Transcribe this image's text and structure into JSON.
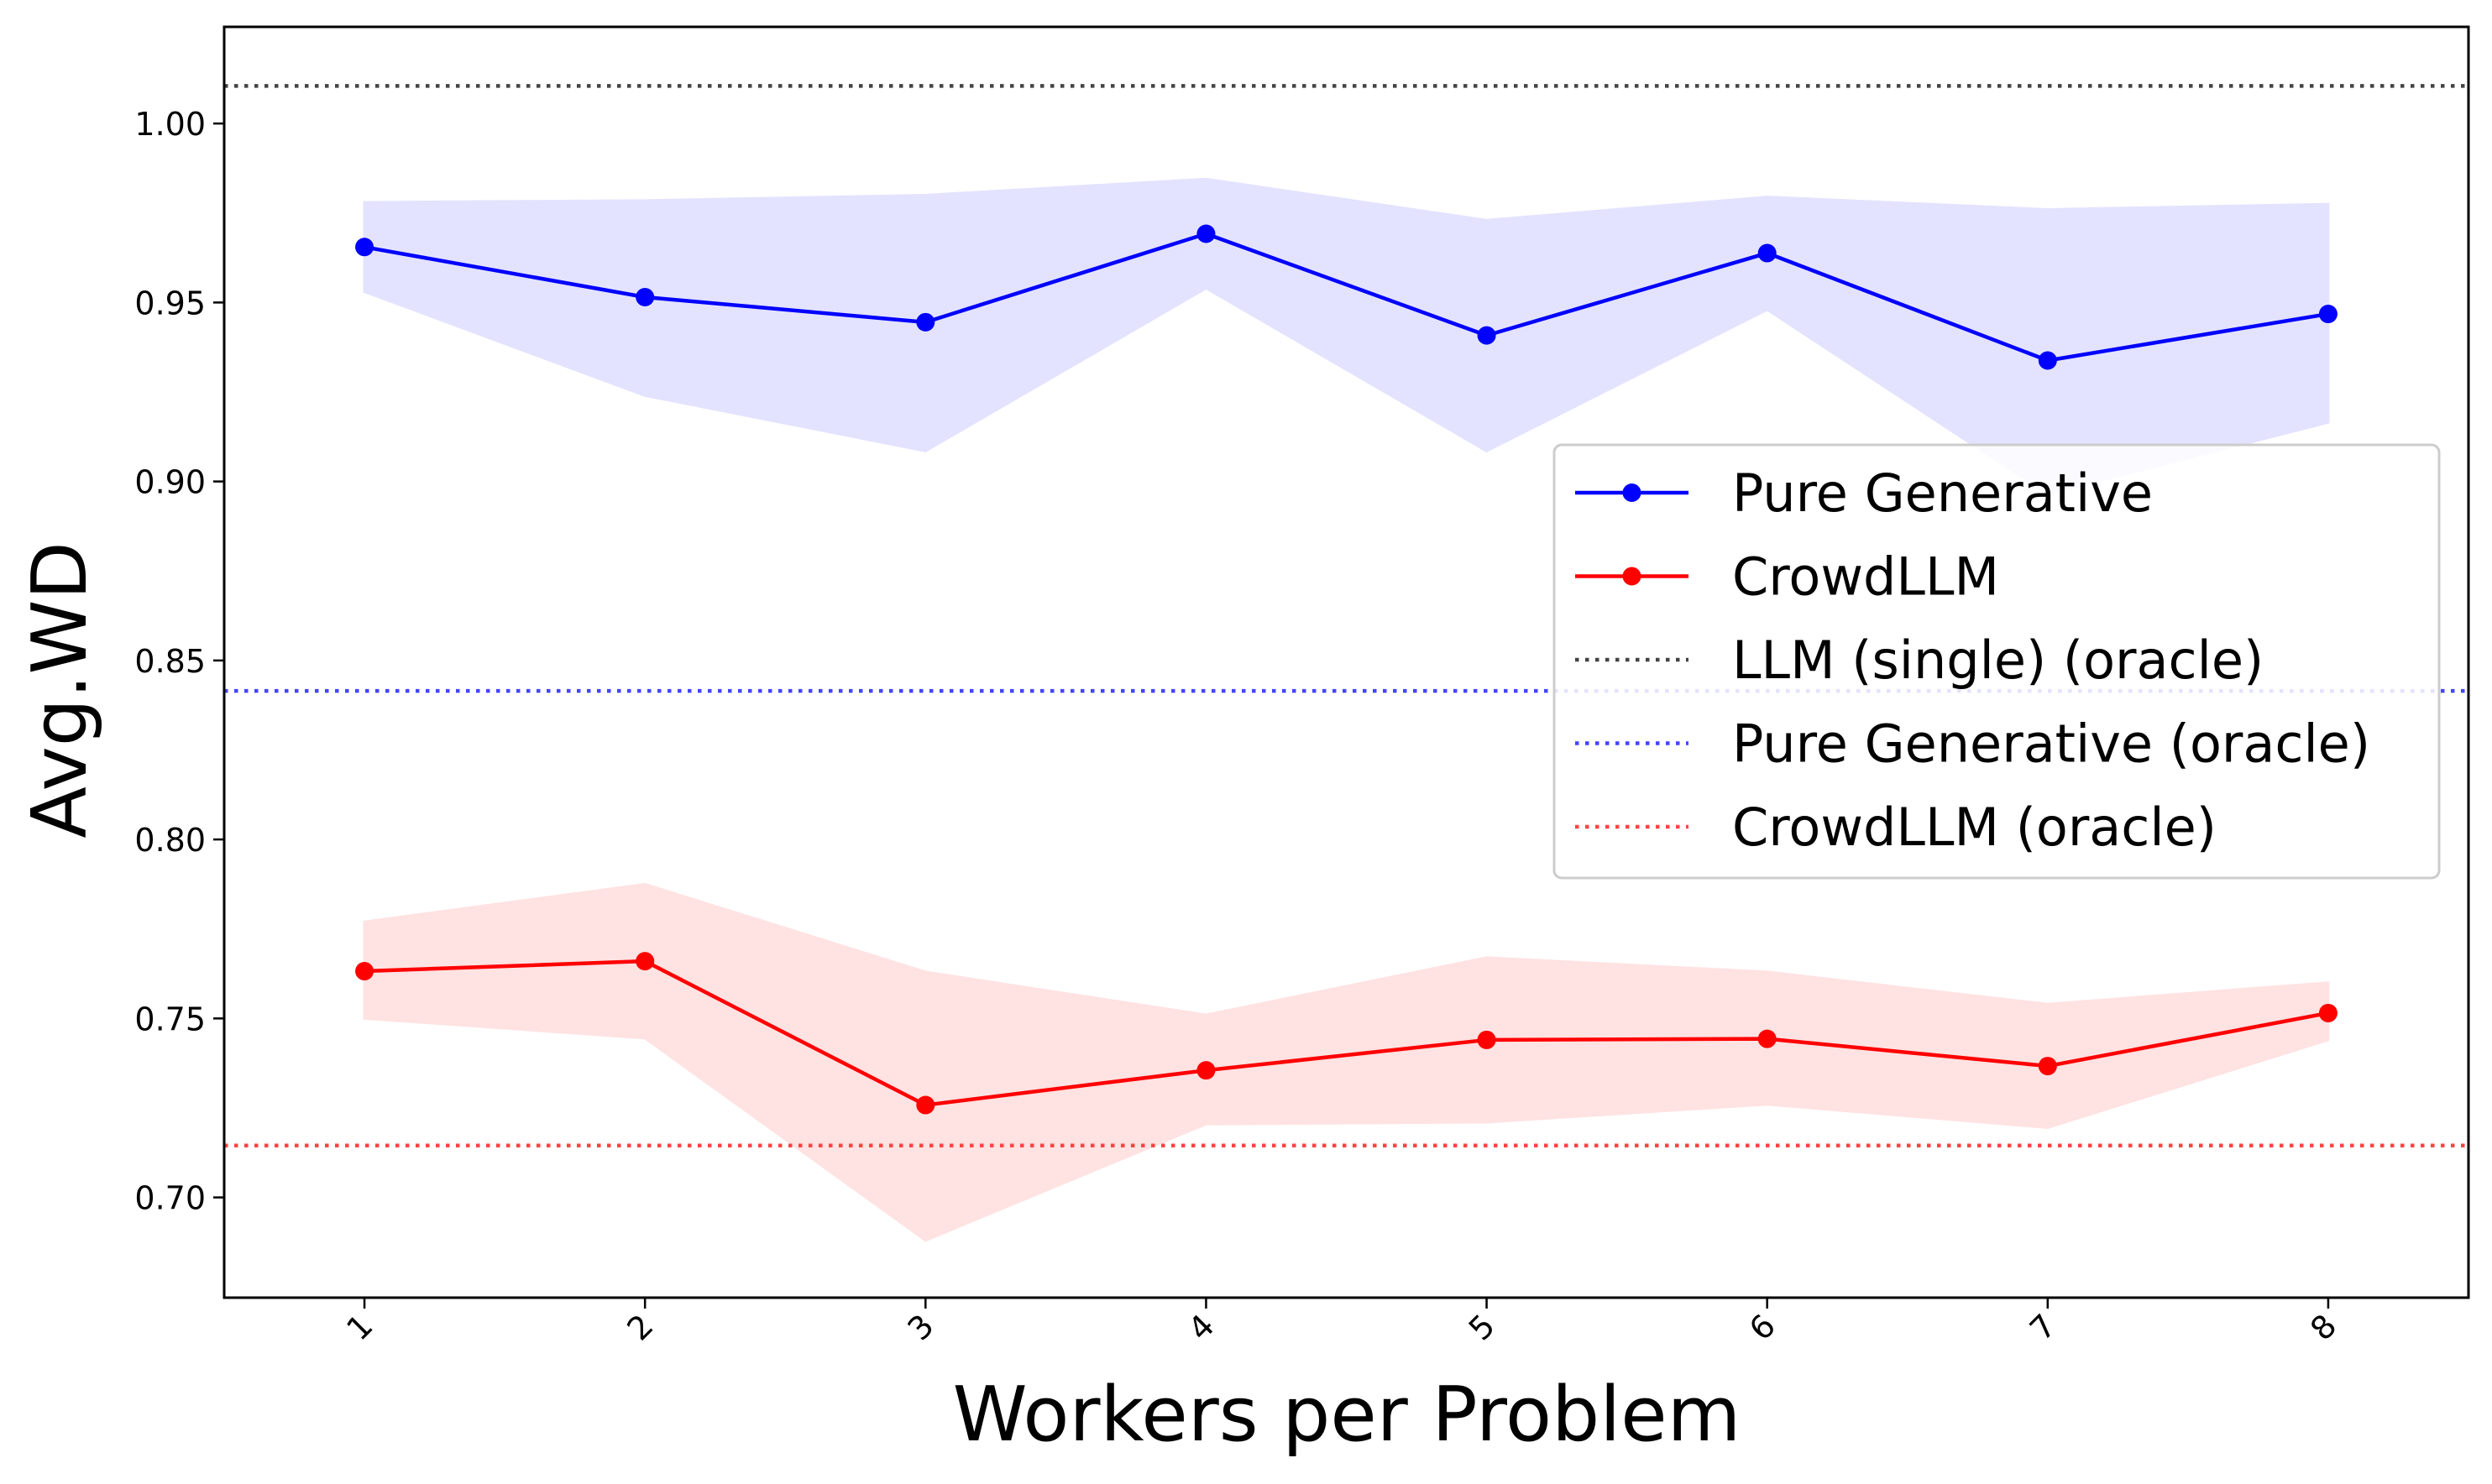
{
  "chart_data": {
    "type": "line",
    "title": "",
    "xlabel": "Workers per Problem",
    "ylabel": "Avg.WD",
    "x": [
      1,
      2,
      3,
      4,
      5,
      6,
      7,
      8
    ],
    "x_tick_labels": [
      "1",
      "2",
      "3",
      "4",
      "5",
      "6",
      "7",
      "8"
    ],
    "x_tick_rotation": "45",
    "xlim": [
      0.5,
      8.5
    ],
    "ylim": [
      0.672,
      1.027
    ],
    "y_ticks": [
      0.7,
      0.75,
      0.8,
      0.85,
      0.9,
      0.95,
      1.0
    ],
    "y_tick_labels": [
      "0.70",
      "0.75",
      "0.80",
      "0.85",
      "0.90",
      "0.95",
      "1.00"
    ],
    "grid": false,
    "legend_position": "center-right",
    "series": [
      {
        "name": "Pure Generative",
        "color": "#0000ff",
        "marker": "circle",
        "values": [
          0.9655,
          0.9515,
          0.9445,
          0.9692,
          0.9408,
          0.9638,
          0.9338,
          0.9468
        ],
        "band_upper": [
          0.978,
          0.9785,
          0.98,
          0.9845,
          0.973,
          0.9795,
          0.976,
          0.9775
        ],
        "band_lower": [
          0.953,
          0.924,
          0.9085,
          0.954,
          0.9085,
          0.948,
          0.8965,
          0.9165
        ],
        "band_color": "#e3e3ff"
      },
      {
        "name": "CrowdLLM",
        "color": "#ff0000",
        "marker": "circle",
        "values": [
          0.7632,
          0.766,
          0.7258,
          0.7355,
          0.744,
          0.7443,
          0.7367,
          0.7515
        ],
        "band_upper": [
          0.777,
          0.7875,
          0.763,
          0.751,
          0.767,
          0.763,
          0.754,
          0.76
        ],
        "band_lower": [
          0.75,
          0.7445,
          0.688,
          0.7205,
          0.721,
          0.726,
          0.7195,
          0.744
        ],
        "band_color": "#ffe2e2"
      }
    ],
    "reference_lines": [
      {
        "name": "LLM (single) (oracle)",
        "value": 1.0105,
        "color": "#444444",
        "style": "dotted"
      },
      {
        "name": "Pure Generative (oracle)",
        "value": 0.8415,
        "color": "#4444ff",
        "style": "dotted"
      },
      {
        "name": "CrowdLLM (oracle)",
        "value": 0.7145,
        "color": "#ff4444",
        "style": "dotted"
      }
    ]
  }
}
